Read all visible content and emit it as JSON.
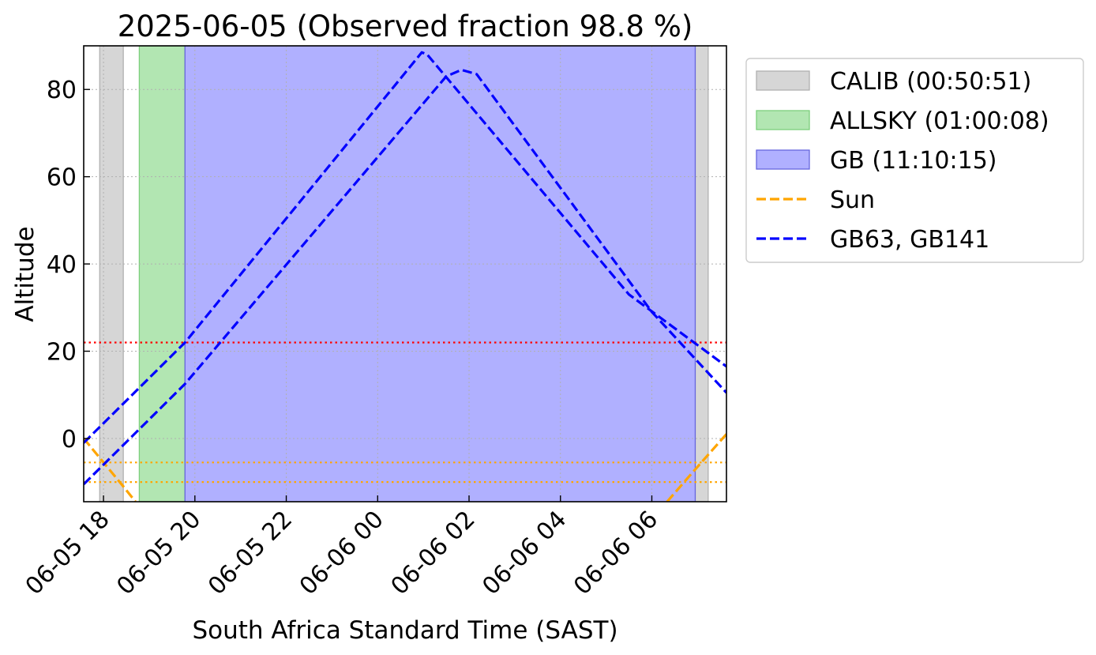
{
  "chart_data": {
    "type": "line",
    "title": "2025-06-05 (Observed fraction 98.8 %)",
    "xlabel": "South Africa Standard Time (SAST)",
    "ylabel": "Altitude",
    "xlim": [
      "2025-06-05 17:34",
      "2025-06-06 07:38"
    ],
    "ylim": [
      -14.5,
      90
    ],
    "y_ticks": [
      0,
      20,
      40,
      60,
      80
    ],
    "x_ticks": [
      {
        "t": "2025-06-05 18:00",
        "label": "06-05 18"
      },
      {
        "t": "2025-06-05 20:00",
        "label": "06-05 20"
      },
      {
        "t": "2025-06-05 22:00",
        "label": "06-05 22"
      },
      {
        "t": "2025-06-06 00:00",
        "label": "06-06 00"
      },
      {
        "t": "2025-06-06 02:00",
        "label": "06-06 02"
      },
      {
        "t": "2025-06-06 04:00",
        "label": "06-06 04"
      },
      {
        "t": "2025-06-06 06:00",
        "label": "06-06 06"
      }
    ],
    "grid": true,
    "legend_position": "outside-right-top",
    "spans": [
      {
        "name": "CALIB (00:50:51)",
        "color": "#d6d6d6",
        "edge": "#b0b0b0",
        "intervals": [
          [
            "2025-06-05 17:55",
            "2025-06-05 18:26"
          ],
          [
            "2025-06-06 06:55",
            "2025-06-06 07:14"
          ]
        ]
      },
      {
        "name": "ALLSKY (01:00:08)",
        "color": "#b2e6b2",
        "edge": "#7ccf7c",
        "intervals": [
          [
            "2025-06-05 18:47",
            "2025-06-05 19:47"
          ]
        ]
      },
      {
        "name": "GB (11:10:15)",
        "color": "#b0b0ff",
        "edge": "#6666dd",
        "intervals": [
          [
            "2025-06-05 19:47",
            "2025-06-06 06:57"
          ]
        ]
      }
    ],
    "hlines": [
      {
        "y": 22,
        "color": "#ff0000"
      },
      {
        "y": -5.5,
        "color": "#ffa500"
      },
      {
        "y": -10,
        "color": "#ffa500"
      }
    ],
    "series": [
      {
        "name": "Sun",
        "color": "#ffa500",
        "segments": [
          [
            [
              "2025-06-05 17:34",
              0
            ],
            [
              "2025-06-05 18:00",
              -5.5
            ],
            [
              "2025-06-05 18:26",
              -11
            ],
            [
              "2025-06-05 18:42",
              -14.5
            ]
          ],
          [
            [
              "2025-06-06 06:20",
              -14.5
            ],
            [
              "2025-06-06 06:55",
              -7.5
            ],
            [
              "2025-06-06 07:38",
              1
            ]
          ]
        ]
      },
      {
        "name": "GB63, GB141",
        "color": "#0000ff",
        "segments": [
          [
            [
              "2025-06-05 17:34",
              -1
            ],
            [
              "2025-06-05 19:47",
              22
            ],
            [
              "2025-06-06 00:58",
              88.5
            ],
            [
              "2025-06-06 01:05",
              88
            ],
            [
              "2025-06-06 05:30",
              33
            ],
            [
              "2025-06-06 07:38",
              16.5
            ]
          ],
          [
            [
              "2025-06-05 17:34",
              -10.5
            ],
            [
              "2025-06-05 19:47",
              12.5
            ],
            [
              "2025-06-06 01:30",
              83
            ],
            [
              "2025-06-06 01:50",
              84.5
            ],
            [
              "2025-06-06 02:10",
              83.5
            ],
            [
              "2025-06-06 06:00",
              29
            ],
            [
              "2025-06-06 07:38",
              10.5
            ]
          ]
        ]
      }
    ]
  }
}
